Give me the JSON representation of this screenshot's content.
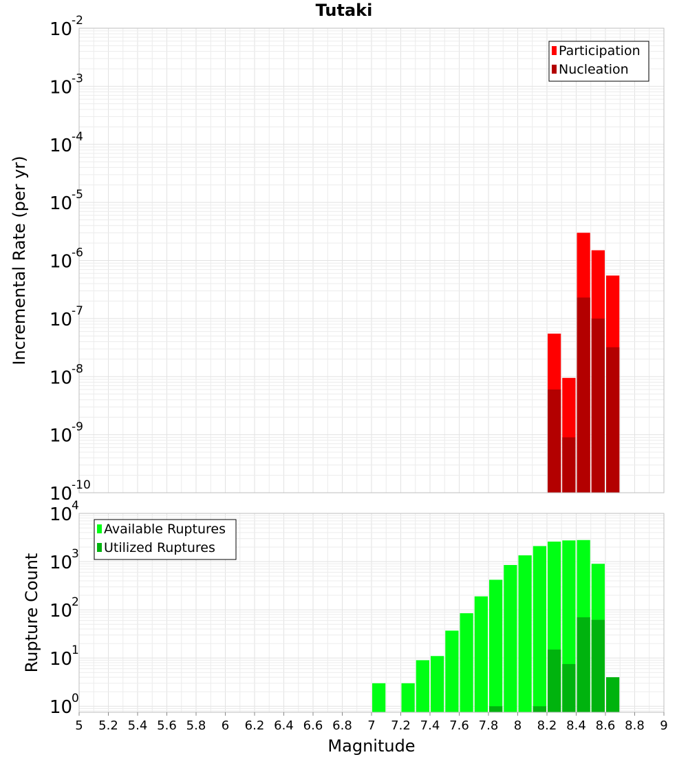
{
  "chart_data": [
    {
      "type": "bar",
      "title": "Tutaki",
      "xlabel": "",
      "ylabel": "Incremental Rate (per yr)",
      "yscale": "log",
      "xlim": [
        5,
        9
      ],
      "ylim": [
        1e-10,
        0.01
      ],
      "bar_width": 0.1,
      "grid": true,
      "legend_position": "top-right",
      "series": [
        {
          "name": "Participation",
          "color": "#ff0000",
          "x": [
            8.25,
            8.35,
            8.45,
            8.55,
            8.65
          ],
          "values": [
            5.5e-08,
            9.5e-09,
            3e-06,
            1.5e-06,
            5.5e-07
          ]
        },
        {
          "name": "Nucleation",
          "color": "#b30000",
          "x": [
            8.25,
            8.35,
            8.45,
            8.55,
            8.65
          ],
          "values": [
            6e-09,
            9e-10,
            2.3e-07,
            1e-07,
            3.2e-08
          ]
        }
      ]
    },
    {
      "type": "bar",
      "title": "",
      "xlabel": "Magnitude",
      "ylabel": "Rupture Count",
      "yscale": "log",
      "xlim": [
        5,
        9
      ],
      "ylim": [
        0.75,
        10000
      ],
      "x_ticks": [
        "5",
        "5.2",
        "5.4",
        "5.6",
        "5.8",
        "6",
        "6.2",
        "6.4",
        "6.6",
        "6.8",
        "7",
        "7.2",
        "7.4",
        "7.6",
        "7.8",
        "8",
        "8.2",
        "8.4",
        "8.6",
        "8.8",
        "9"
      ],
      "bar_width": 0.1,
      "grid": true,
      "legend_position": "top-left",
      "series": [
        {
          "name": "Available Ruptures",
          "color": "#00ff14",
          "x": [
            7.05,
            7.25,
            7.35,
            7.45,
            7.55,
            7.65,
            7.75,
            7.85,
            7.95,
            8.05,
            8.15,
            8.25,
            8.35,
            8.45,
            8.55
          ],
          "values": [
            3,
            3,
            9,
            11,
            37,
            85,
            190,
            420,
            850,
            1350,
            2100,
            2600,
            2750,
            2800,
            900
          ]
        },
        {
          "name": "Utilized Ruptures",
          "color": "#00b30e",
          "x": [
            7.85,
            8.15,
            8.25,
            8.35,
            8.45,
            8.55,
            8.65
          ],
          "values": [
            1,
            1,
            15,
            7.5,
            70,
            62,
            4
          ]
        }
      ]
    }
  ]
}
